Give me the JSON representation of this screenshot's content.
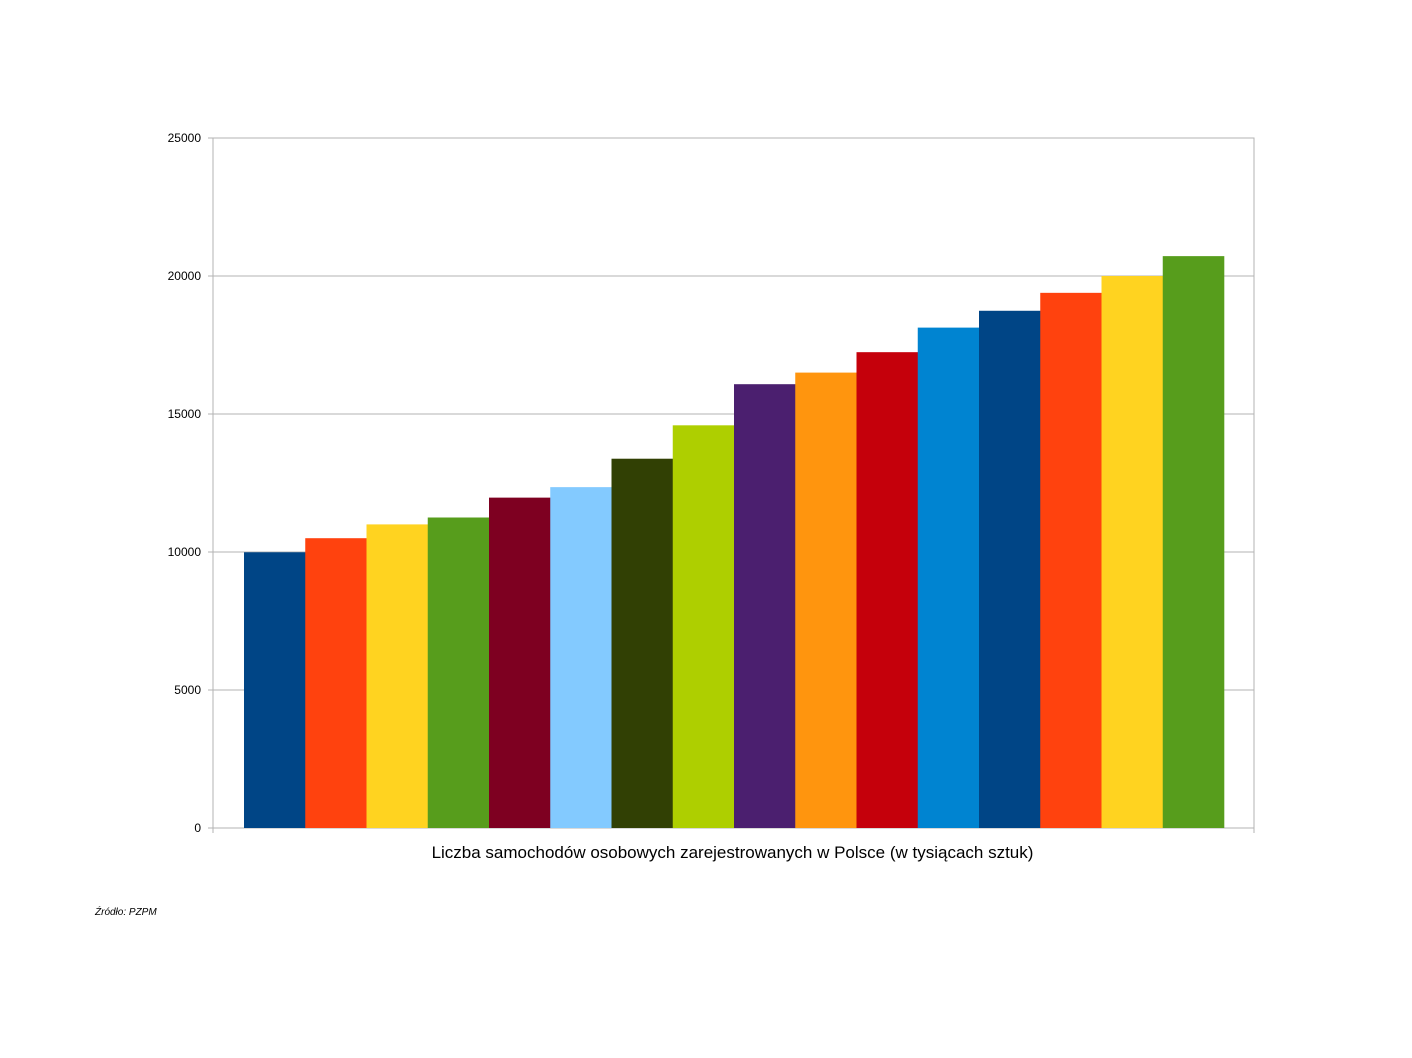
{
  "source_note": "Źródło: PZPM",
  "chart_data": {
    "type": "bar",
    "title": "",
    "xlabel": "Liczba samochodów osobowych zarejestrowanych w Polsce (w tysiącach sztuk)",
    "ylabel": "",
    "ylim": [
      0,
      25000
    ],
    "yticks": [
      0,
      5000,
      10000,
      15000,
      20000,
      25000
    ],
    "grid": true,
    "legend": "none",
    "values": [
      9990,
      10500,
      11000,
      11250,
      11970,
      12350,
      13380,
      14590,
      16080,
      16500,
      17240,
      18130,
      18740,
      19390,
      20000,
      20720
    ],
    "colors": [
      "#004586",
      "#ff420e",
      "#ffd320",
      "#579d1c",
      "#7e0021",
      "#83caff",
      "#314004",
      "#aecf00",
      "#4b1f6f",
      "#ff950e",
      "#c5000b",
      "#0084d1",
      "#004586",
      "#ff420e",
      "#ffd320",
      "#579d1c"
    ]
  }
}
